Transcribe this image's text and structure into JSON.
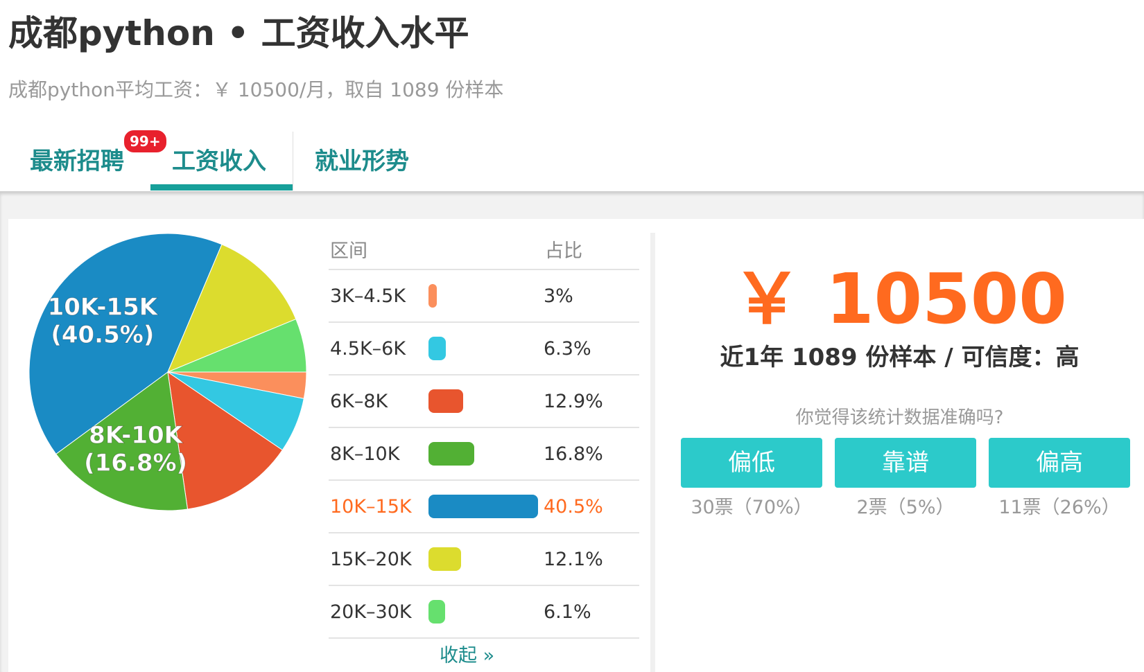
{
  "header": {
    "title": "成都python • 工资收入水平",
    "subtitle": "成都python平均工资：￥ 10500/月，取自 1089 份样本"
  },
  "tabs": [
    {
      "label": "最新招聘",
      "badge": "99+"
    },
    {
      "label": "工资收入"
    },
    {
      "label": "就业形势"
    }
  ],
  "chart_data": {
    "type": "pie",
    "column_headers": [
      "区间",
      "占比"
    ],
    "categories": [
      "3K–4.5K",
      "4.5K–6K",
      "6K–8K",
      "8K–10K",
      "10K–15K",
      "15K–20K",
      "20K–30K"
    ],
    "values": [
      3,
      6.3,
      12.9,
      16.8,
      40.5,
      12.1,
      6.1
    ],
    "value_labels": [
      "3%",
      "6.3%",
      "12.9%",
      "16.8%",
      "40.5%",
      "12.1%",
      "6.1%"
    ],
    "colors": [
      "#fb8f5c",
      "#33c8e2",
      "#e8552e",
      "#52b034",
      "#1a8bc4",
      "#dcdc2e",
      "#66e06e"
    ],
    "slice_labels": [
      null,
      null,
      null,
      [
        "8K-10K",
        "(16.8%)"
      ],
      [
        "10K-15K",
        "(40.5%)"
      ],
      null,
      null
    ],
    "collapse": "收起 »"
  },
  "summary": {
    "average": "￥ 10500",
    "detail": "近1年 1089 份样本 / 可信度：高",
    "question": "你觉得该统计数据准确吗?",
    "votes": [
      {
        "label": "偏低",
        "result": "30票（70%）"
      },
      {
        "label": "靠谱",
        "result": "2票（5%）"
      },
      {
        "label": "偏高",
        "result": "11票（26%）"
      }
    ]
  }
}
